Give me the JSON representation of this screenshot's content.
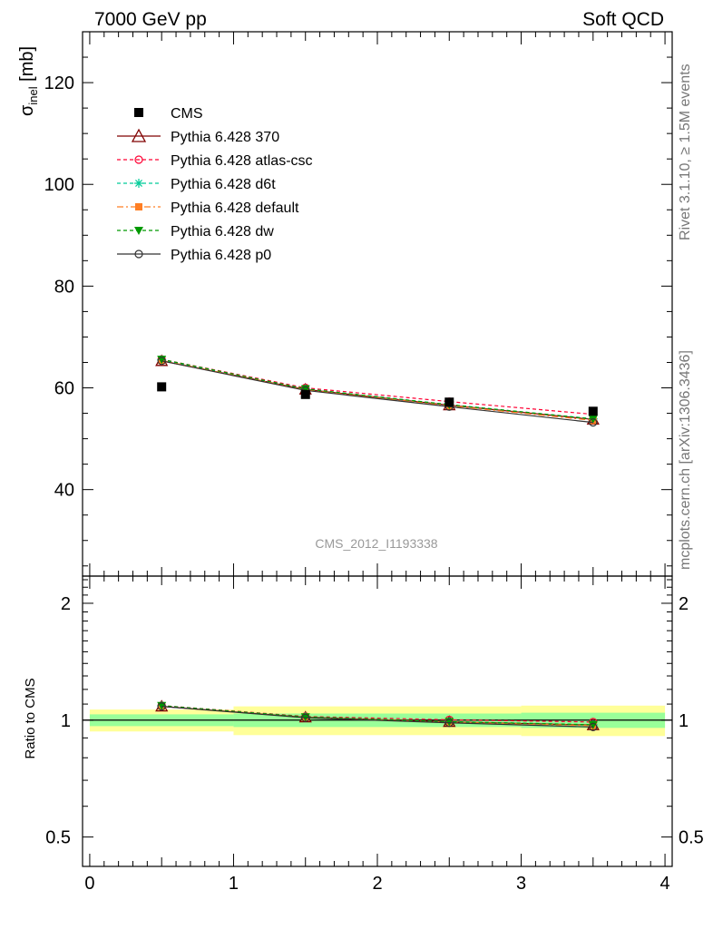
{
  "header": {
    "left": "7000 GeV pp",
    "right": "Soft QCD"
  },
  "side_text": {
    "rivet": "Rivet 3.1.10, ≥ 1.5M events",
    "mcplots": "mcplots.cern.ch [arXiv:1306.3436]"
  },
  "analysis_id": "CMS_2012_I1193338",
  "chart_data": [
    {
      "type": "line",
      "ylabel": "σinel [mb]",
      "ylabel_main": "σ",
      "ylabel_sub": "inel",
      "ylabel_unit": " [mb]",
      "xlim": [
        -0.05,
        4.05
      ],
      "ylim": [
        23,
        130
      ],
      "yticks": [
        40,
        60,
        80,
        100,
        120
      ],
      "x": [
        0.5,
        1.5,
        2.5,
        3.5
      ],
      "data": {
        "name": "CMS",
        "color": "#000000",
        "y": [
          60.2,
          58.7,
          57.2,
          55.4
        ]
      },
      "series": [
        {
          "name": "Pythia 6.428 370",
          "color": "#800000",
          "dash": "",
          "marker": "triangle-open",
          "y": [
            65.3,
            59.7,
            56.6,
            53.8
          ]
        },
        {
          "name": "Pythia 6.428 atlas-csc",
          "color": "#ff0033",
          "dash": "4,3",
          "marker": "circle-open",
          "y": [
            65.6,
            60.0,
            57.3,
            54.8
          ]
        },
        {
          "name": "Pythia 6.428 d6t",
          "color": "#00cc99",
          "dash": "4,3",
          "marker": "star",
          "y": [
            65.5,
            59.8,
            56.7,
            53.9
          ]
        },
        {
          "name": "Pythia 6.428 default",
          "color": "#ff7f24",
          "dash": "7,3,2,3",
          "marker": "square-filled",
          "y": [
            65.4,
            59.6,
            56.5,
            53.6
          ]
        },
        {
          "name": "Pythia 6.428 dw",
          "color": "#009900",
          "dash": "4,3",
          "marker": "triangle-down-filled",
          "y": [
            65.6,
            59.8,
            56.7,
            53.9
          ]
        },
        {
          "name": "Pythia 6.428 p0",
          "color": "#333333",
          "dash": "",
          "marker": "circle-open",
          "y": [
            65.3,
            59.5,
            56.3,
            53.2
          ]
        }
      ],
      "legend_position": "top-left",
      "grid": false
    },
    {
      "type": "line",
      "ylabel": "Ratio to CMS",
      "ylim": [
        0.42,
        2.35
      ],
      "log_y": true,
      "yticks": [
        0.5,
        1,
        2
      ],
      "xticks": [
        0,
        1,
        2,
        3,
        4
      ],
      "bins": [
        [
          0,
          1
        ],
        [
          1,
          2
        ],
        [
          2,
          3
        ],
        [
          3,
          4
        ]
      ],
      "band_stat": [
        0.035,
        0.04,
        0.04,
        0.045
      ],
      "band_total": [
        0.065,
        0.085,
        0.085,
        0.09
      ],
      "band_stat_color": "#99ff99",
      "band_total_color": "#ffff99",
      "ratio_series": [
        [
          1.085,
          1.017,
          0.99,
          0.971
        ],
        [
          1.09,
          1.022,
          1.002,
          0.989
        ],
        [
          1.088,
          1.019,
          0.991,
          0.973
        ],
        [
          1.086,
          1.015,
          0.988,
          0.968
        ],
        [
          1.09,
          1.019,
          0.991,
          0.973
        ],
        [
          1.085,
          1.014,
          0.984,
          0.96
        ]
      ]
    }
  ]
}
